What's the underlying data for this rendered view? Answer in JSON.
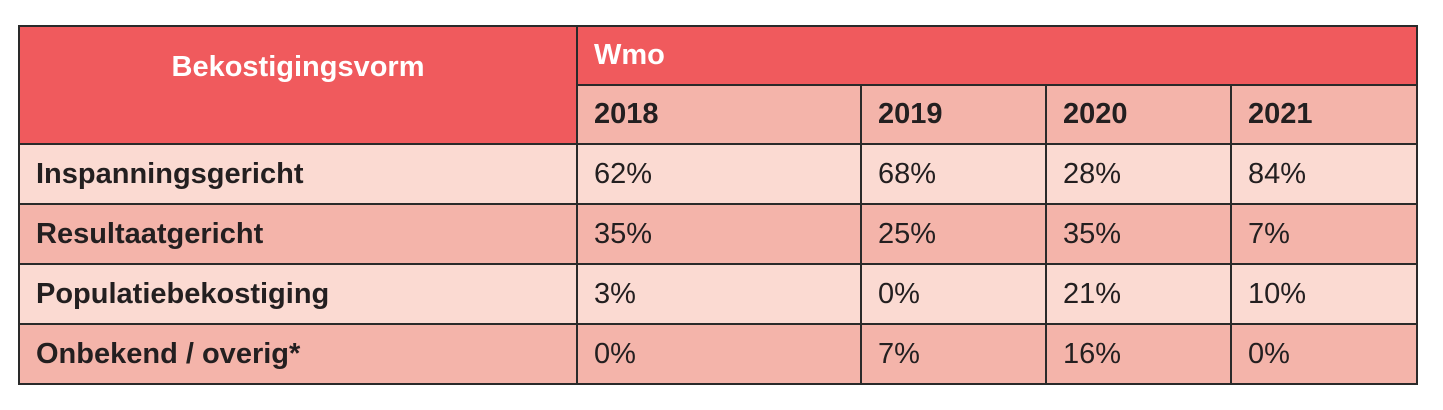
{
  "table": {
    "header": {
      "first_col": "Bekostigingsvorm",
      "group": "Wmo",
      "years": [
        "2018",
        "2019",
        "2020",
        "2021"
      ]
    },
    "rows": [
      {
        "label": "Inspanningsgericht",
        "values": [
          "62%",
          "68%",
          "28%",
          "84%"
        ]
      },
      {
        "label": "Resultaatgericht",
        "values": [
          "35%",
          "25%",
          "35%",
          "7%"
        ]
      },
      {
        "label": "Populatiebekostiging",
        "values": [
          "3%",
          "0%",
          "21%",
          "10%"
        ]
      },
      {
        "label": "Onbekend / overig*",
        "values": [
          "0%",
          "7%",
          "16%",
          "0%"
        ]
      }
    ]
  },
  "colors": {
    "header_red": "#f05a5d",
    "row_light": "#fbdad2",
    "row_dark": "#f4b4aa"
  }
}
